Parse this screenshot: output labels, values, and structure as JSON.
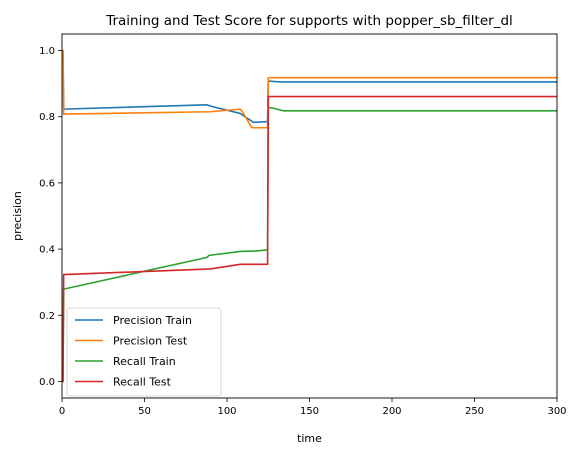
{
  "chart_data": {
    "type": "line",
    "title": "Training and Test Score for supports with popper_sb_filter_dl",
    "xlabel": "time",
    "ylabel": "precision",
    "xlim": [
      0,
      300
    ],
    "ylim": [
      -0.05,
      1.05
    ],
    "xticks": [
      0,
      50,
      100,
      150,
      200,
      250,
      300
    ],
    "yticks": [
      0.0,
      0.2,
      0.4,
      0.6,
      0.8,
      1.0
    ],
    "xtick_labels": [
      "0",
      "50",
      "100",
      "150",
      "200",
      "250",
      "300"
    ],
    "ytick_labels": [
      "0.0",
      "0.2",
      "0.4",
      "0.6",
      "0.8",
      "1.0"
    ],
    "grid": false,
    "legend_position": "lower-left",
    "series": [
      {
        "name": "Precision Train",
        "color": "#1f77b4",
        "x": [
          0,
          0.6,
          1,
          88,
          90,
          108,
          116,
          124,
          124.6,
          125,
          132,
          300
        ],
        "y": [
          1.0,
          1.0,
          0.823,
          0.836,
          0.832,
          0.81,
          0.783,
          0.785,
          0.785,
          0.908,
          0.905,
          0.905
        ]
      },
      {
        "name": "Precision Test",
        "color": "#ff7f0e",
        "x": [
          0,
          0.6,
          1,
          90,
          108,
          110,
          115,
          124,
          124.6,
          125,
          300
        ],
        "y": [
          1.0,
          1.0,
          0.808,
          0.815,
          0.823,
          0.81,
          0.767,
          0.767,
          0.767,
          0.918,
          0.918
        ]
      },
      {
        "name": "Recall Train",
        "color": "#2ca02c",
        "x": [
          0,
          0.6,
          1,
          88,
          89,
          108,
          116,
          124,
          124.6,
          125,
          128,
          134,
          300
        ],
        "y": [
          0.0,
          0.0,
          0.279,
          0.375,
          0.381,
          0.393,
          0.394,
          0.397,
          0.397,
          0.828,
          0.826,
          0.818,
          0.818
        ]
      },
      {
        "name": "Recall Test",
        "color": "#d62728",
        "x": [
          0,
          0.6,
          1,
          90,
          108,
          124,
          124.6,
          125,
          300
        ],
        "y": [
          0.0,
          0.0,
          0.323,
          0.34,
          0.354,
          0.354,
          0.354,
          0.861,
          0.861
        ]
      }
    ]
  }
}
